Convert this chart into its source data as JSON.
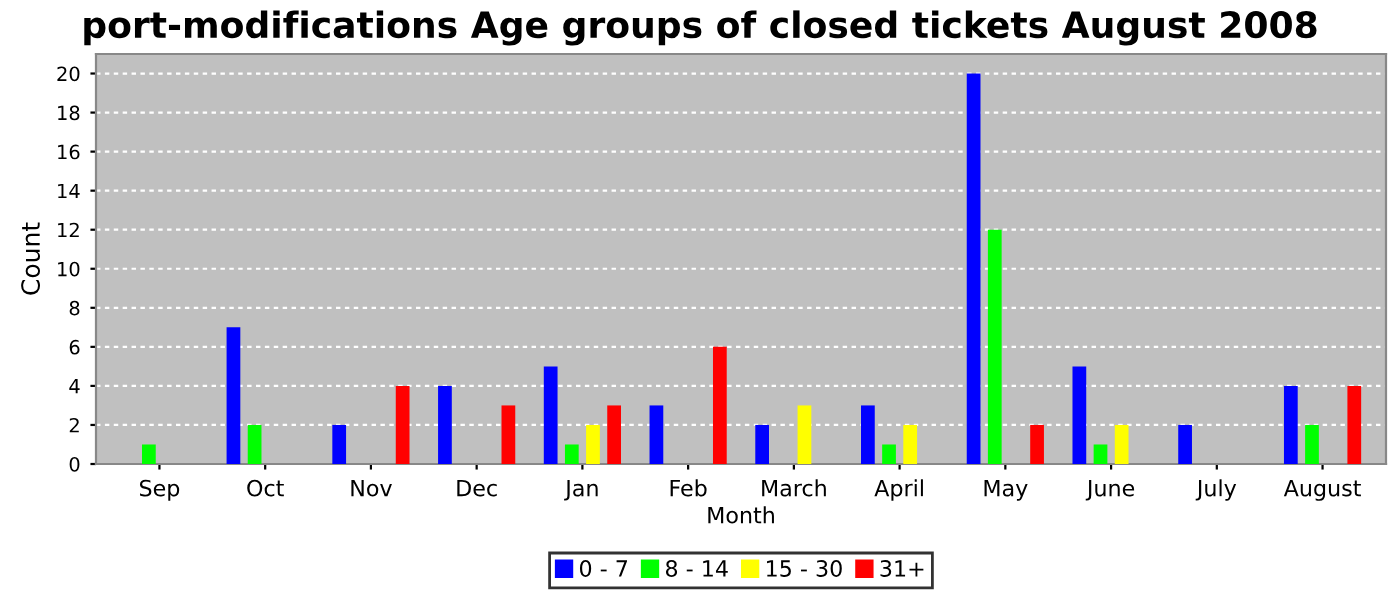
{
  "chart_data": {
    "type": "bar",
    "title": "port-modifications Age groups of closed tickets August 2008",
    "xlabel": "Month",
    "ylabel": "Count",
    "categories": [
      "Sep",
      "Oct",
      "Nov",
      "Dec",
      "Jan",
      "Feb",
      "March",
      "April",
      "May",
      "June",
      "July",
      "August"
    ],
    "series": [
      {
        "name": "0 - 7",
        "color": "#0000ff",
        "values": [
          0,
          7,
          2,
          4,
          5,
          3,
          2,
          3,
          20,
          5,
          2,
          4
        ]
      },
      {
        "name": "8 - 14",
        "color": "#00ff00",
        "values": [
          1,
          2,
          0,
          0,
          1,
          0,
          0,
          1,
          12,
          1,
          0,
          2
        ]
      },
      {
        "name": "15 - 30",
        "color": "#ffff00",
        "values": [
          0,
          0,
          0,
          0,
          2,
          0,
          3,
          2,
          0,
          2,
          0,
          0
        ]
      },
      {
        "name": "31+",
        "color": "#ff0000",
        "values": [
          0,
          0,
          4,
          3,
          3,
          6,
          0,
          0,
          2,
          0,
          0,
          4
        ]
      }
    ],
    "ylim": [
      0,
      21
    ],
    "yticks": [
      0,
      2,
      4,
      6,
      8,
      10,
      12,
      14,
      16,
      18,
      20
    ],
    "grid": "y",
    "legend": "bottom"
  }
}
